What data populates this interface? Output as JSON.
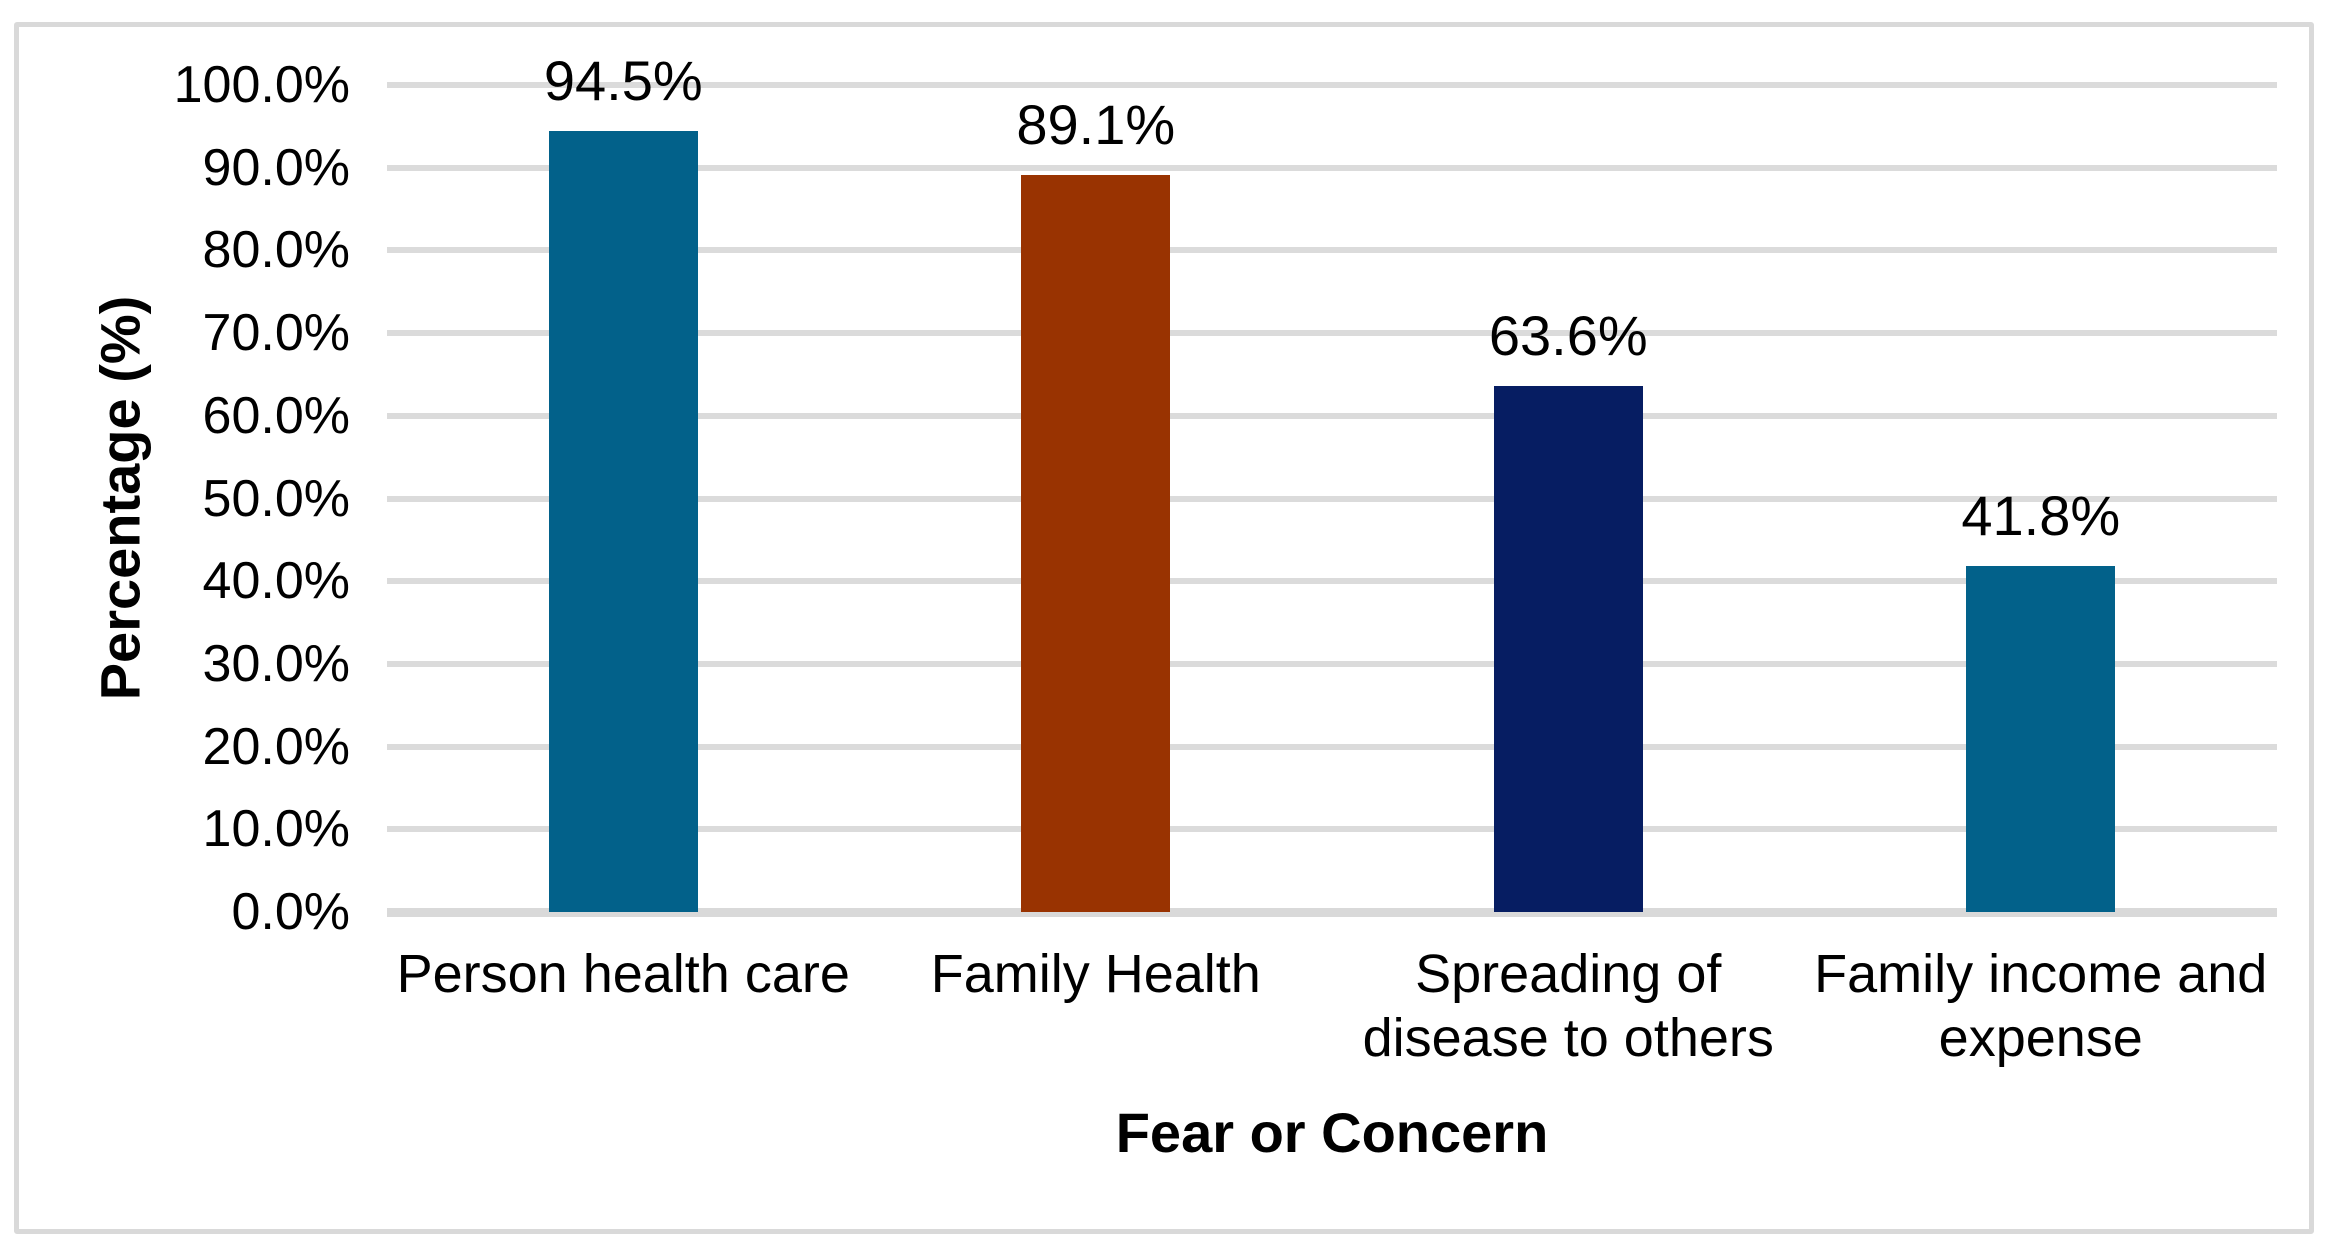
{
  "figure": {
    "background": "#ffffff",
    "frame_border_color": "#d9d9d9"
  },
  "chart_data": {
    "type": "bar",
    "title": "",
    "xlabel": "Fear or Concern",
    "ylabel": "Percentage (%)",
    "categories": [
      "Person health care",
      "Family Health",
      "Spreading of disease to others",
      "Family income and expense"
    ],
    "values": [
      94.5,
      89.1,
      63.6,
      41.8
    ],
    "bars": [
      {
        "category": "Person health care",
        "category_lines": [
          "Person health care"
        ],
        "value": 94.5,
        "label": "94.5%",
        "color": "#02618a"
      },
      {
        "category": "Family Health",
        "category_lines": [
          "Family Health"
        ],
        "value": 89.1,
        "label": "89.1%",
        "color": "#993301"
      },
      {
        "category": "Spreading of disease to others",
        "category_lines": [
          "Spreading of",
          "disease to others"
        ],
        "value": 63.6,
        "label": "63.6%",
        "color": "#061d62"
      },
      {
        "category": "Family income and expense",
        "category_lines": [
          "Family income and",
          "expense"
        ],
        "value": 41.8,
        "label": "41.8%",
        "color": "#02618a"
      }
    ],
    "ylim": [
      0,
      100
    ],
    "ytick_step": 10,
    "yticks": [
      {
        "value": 0,
        "label": "0.0%"
      },
      {
        "value": 10,
        "label": "10.0%"
      },
      {
        "value": 20,
        "label": "20.0%"
      },
      {
        "value": 30,
        "label": "30.0%"
      },
      {
        "value": 40,
        "label": "40.0%"
      },
      {
        "value": 50,
        "label": "50.0%"
      },
      {
        "value": 60,
        "label": "60.0%"
      },
      {
        "value": 70,
        "label": "70.0%"
      },
      {
        "value": 80,
        "label": "80.0%"
      },
      {
        "value": 90,
        "label": "90.0%"
      },
      {
        "value": 100,
        "label": "100.0%"
      }
    ],
    "grid": true,
    "gridline_color": "#dbdbdb",
    "axis_line_color": "#d9d9d9",
    "legend": "none",
    "text_color": "#000000"
  }
}
